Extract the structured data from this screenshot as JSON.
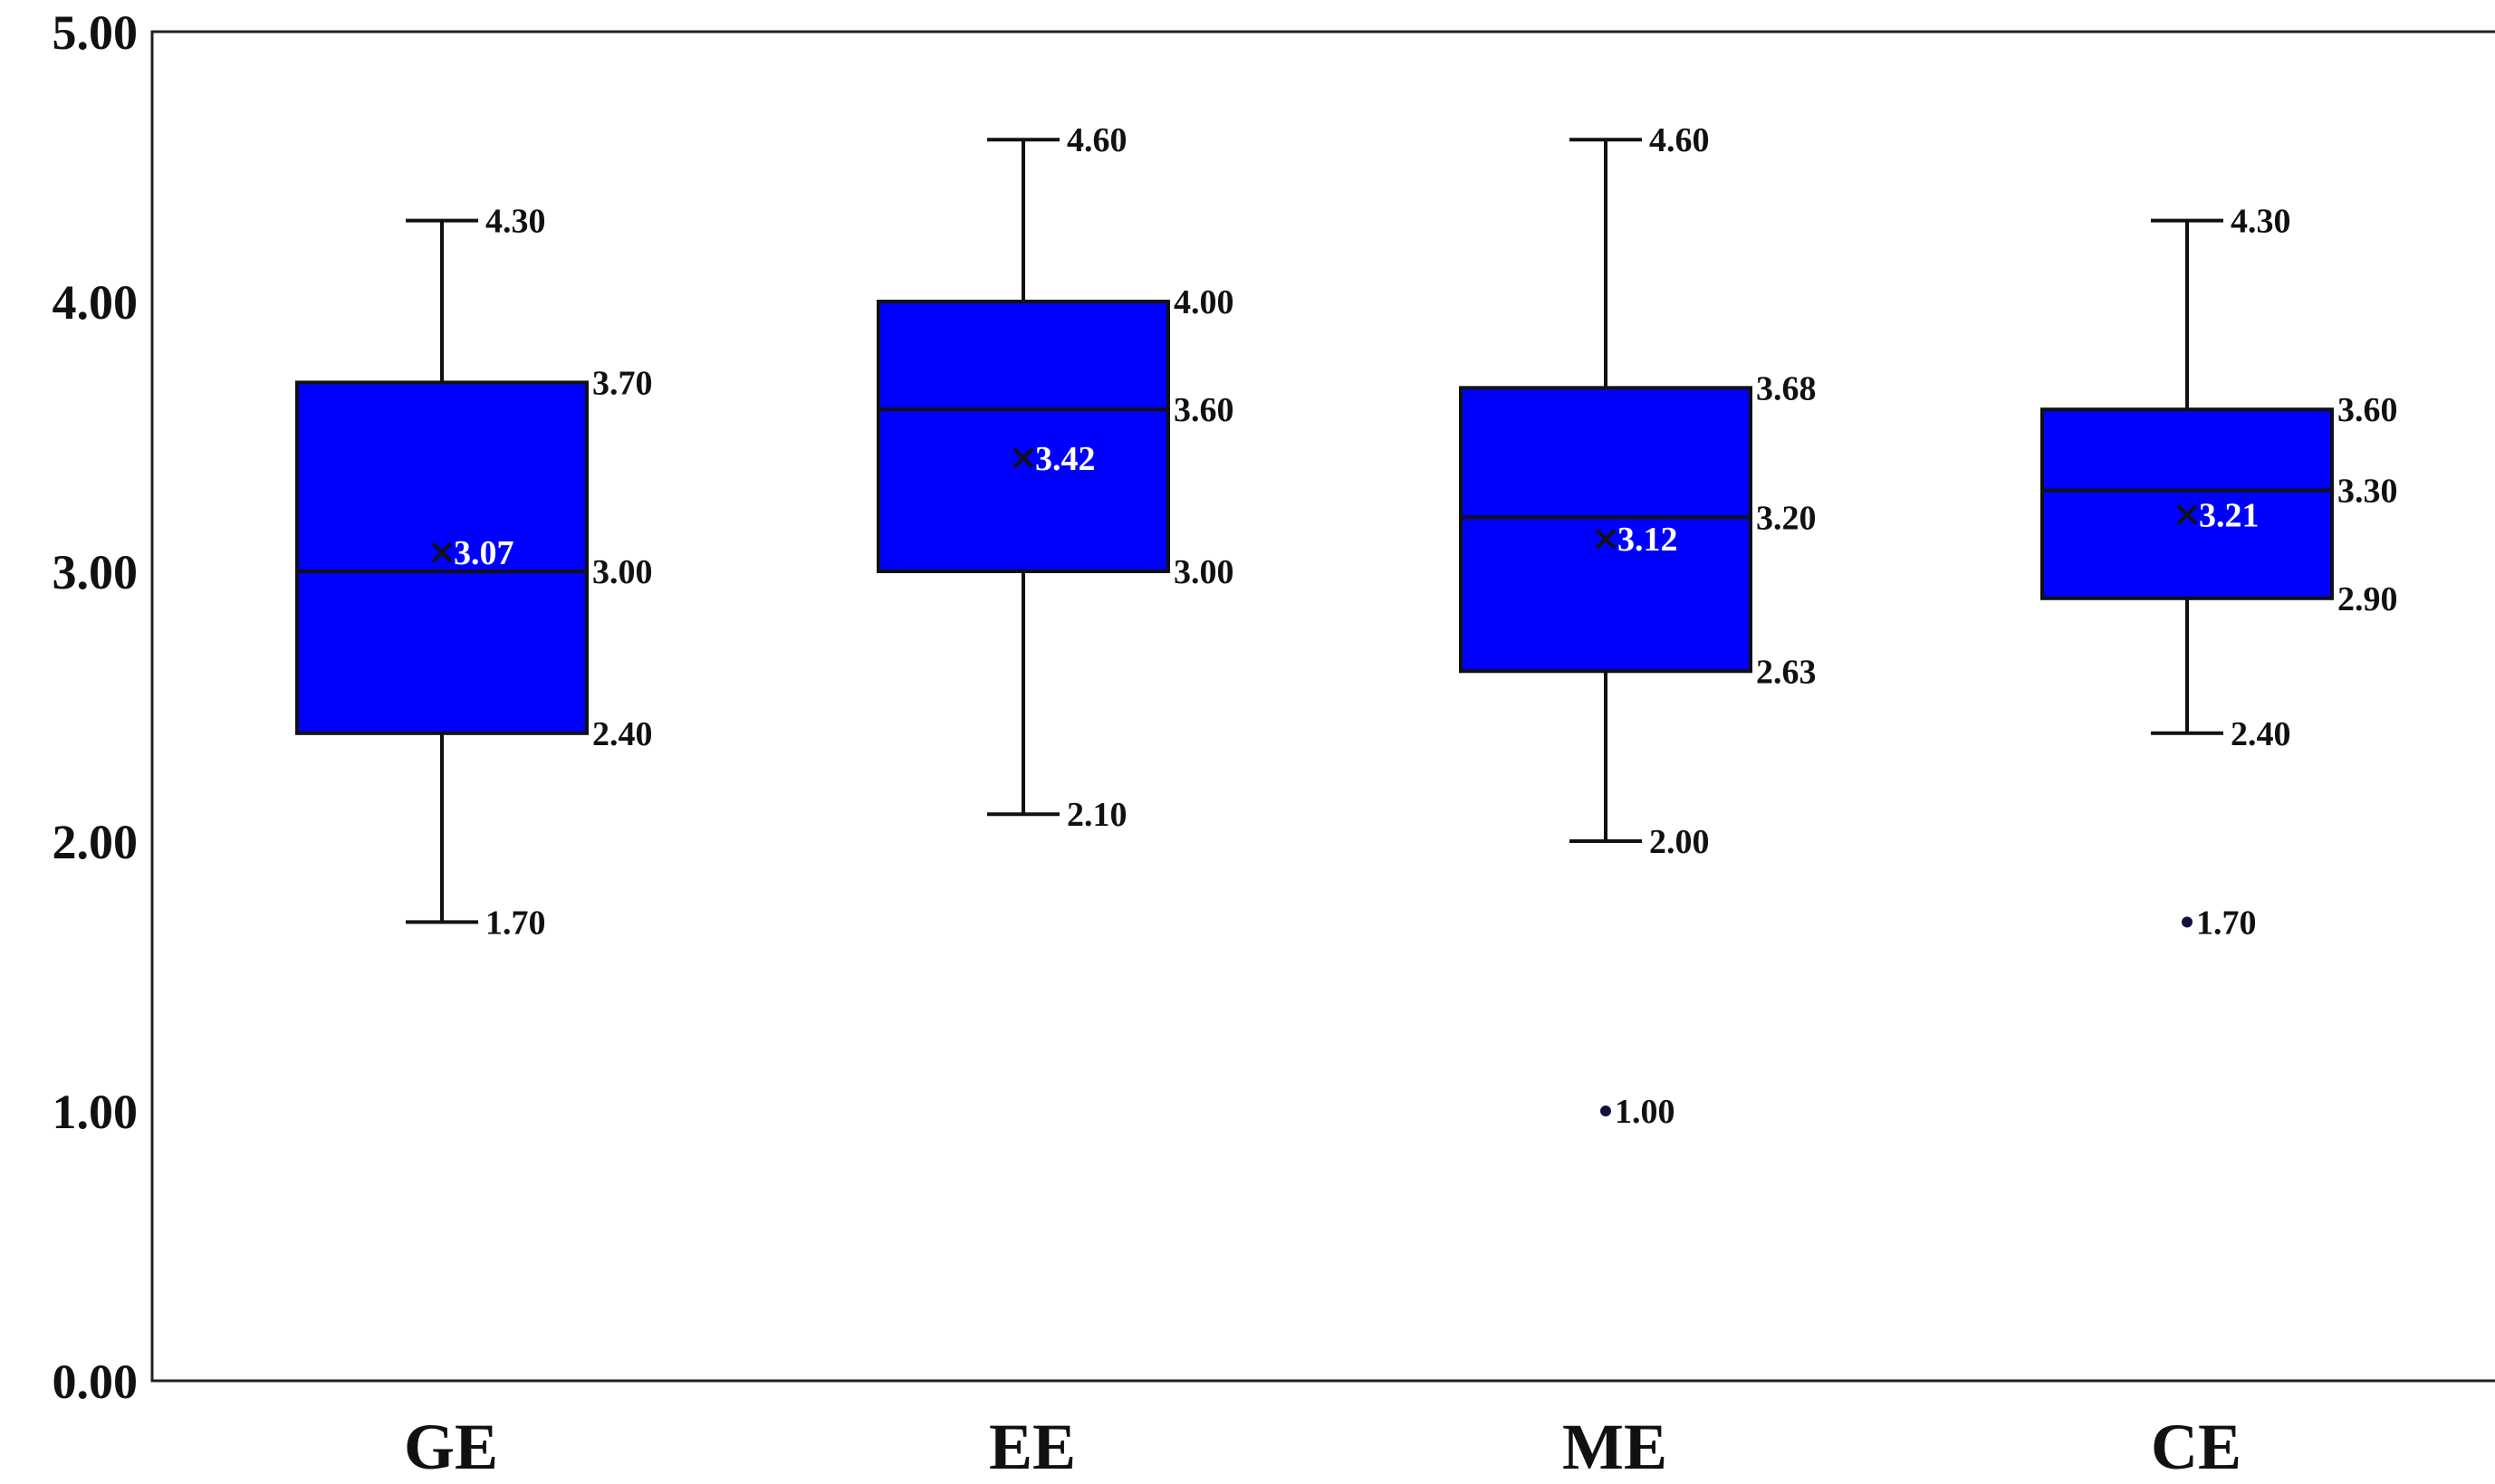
{
  "chart_data": {
    "type": "box",
    "categories": [
      "GE",
      "EE",
      "ME",
      "CE"
    ],
    "ylim": [
      0,
      5
    ],
    "yticks": [
      "0.00",
      "1.00",
      "2.00",
      "3.00",
      "4.00",
      "5.00"
    ],
    "grid": false,
    "legend": "none",
    "box_color": "#0000FF",
    "series": [
      {
        "category": "GE",
        "min": 1.7,
        "q1": 2.4,
        "median": 3.0,
        "q3": 3.7,
        "max": 4.3,
        "mean": 3.07,
        "outliers": [],
        "labels": {
          "min": "1.70",
          "q1": "2.40",
          "median": "3.00",
          "q3": "3.70",
          "max": "4.30",
          "mean": "3.07",
          "outliers": []
        }
      },
      {
        "category": "EE",
        "min": 2.1,
        "q1": 3.0,
        "median": 3.6,
        "q3": 4.0,
        "max": 4.6,
        "mean": 3.42,
        "outliers": [],
        "labels": {
          "min": "2.10",
          "q1": "3.00",
          "median": "3.60",
          "q3": "4.00",
          "max": "4.60",
          "mean": "3.42",
          "outliers": []
        }
      },
      {
        "category": "ME",
        "min": 2.0,
        "q1": 2.63,
        "median": 3.2,
        "q3": 3.68,
        "max": 4.6,
        "mean": 3.12,
        "outliers": [
          1.0
        ],
        "labels": {
          "min": "2.00",
          "q1": "2.63",
          "median": "3.20",
          "q3": "3.68",
          "max": "4.60",
          "mean": "3.12",
          "outliers": [
            "1.00"
          ]
        }
      },
      {
        "category": "CE",
        "min": 2.4,
        "q1": 2.9,
        "median": 3.3,
        "q3": 3.6,
        "max": 4.3,
        "mean": 3.21,
        "outliers": [
          1.7
        ],
        "labels": {
          "min": "2.40",
          "q1": "2.90",
          "median": "3.30",
          "q3": "3.60",
          "max": "4.30",
          "mean": "3.21",
          "outliers": [
            "1.70"
          ]
        }
      }
    ]
  }
}
